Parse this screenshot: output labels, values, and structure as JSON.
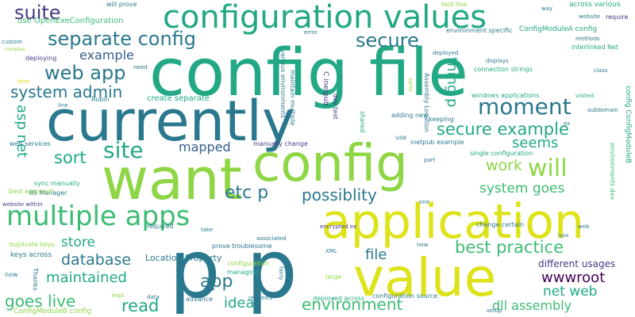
{
  "palette": {
    "yellow": "#dde318",
    "lime": "#8ed645",
    "green": "#3dbc74",
    "teal": "#22a884",
    "blue": "#2a788e",
    "slate": "#355f8d",
    "indigo": "#443a83",
    "purple": "#440154"
  },
  "words": [
    {
      "text": "config file"
    },
    {
      "text": "p p"
    },
    {
      "text": "currently"
    },
    {
      "text": "want"
    },
    {
      "text": "config"
    },
    {
      "text": "application"
    },
    {
      "text": "value"
    },
    {
      "text": "configuration values"
    },
    {
      "text": "multiple apps"
    },
    {
      "text": "separate config"
    },
    {
      "text": "secure"
    },
    {
      "text": "suite"
    },
    {
      "text": "web app"
    },
    {
      "text": "system admin"
    },
    {
      "text": "example"
    },
    {
      "text": "moment"
    },
    {
      "text": "site"
    },
    {
      "text": "will"
    },
    {
      "text": "secure example"
    },
    {
      "text": "sort"
    },
    {
      "text": "mapped"
    },
    {
      "text": "etc p"
    },
    {
      "text": "possiblity"
    },
    {
      "text": "seems"
    },
    {
      "text": "work"
    },
    {
      "text": "system goes"
    },
    {
      "text": "best practice"
    },
    {
      "text": "database"
    },
    {
      "text": "store"
    },
    {
      "text": "maintained"
    },
    {
      "text": "app"
    },
    {
      "text": "idea"
    },
    {
      "text": "read"
    },
    {
      "text": "goes live"
    },
    {
      "text": "environment"
    },
    {
      "text": "file"
    },
    {
      "text": "wwwroot"
    },
    {
      "text": "net web"
    },
    {
      "text": "dll assembly"
    },
    {
      "text": "asp net"
    },
    {
      "text": "thing p"
    },
    {
      "text": "different usages"
    },
    {
      "text": "Location Property"
    },
    {
      "text": "create separate"
    },
    {
      "text": "windows applications"
    },
    {
      "text": "use OpenExeConfiguration"
    },
    {
      "text": "ConfigModuleA config"
    },
    {
      "text": "environment specific"
    },
    {
      "text": "connection strings"
    },
    {
      "text": "inetpub example"
    },
    {
      "text": "single configuration"
    },
    {
      "text": "change certain"
    },
    {
      "text": "keys across"
    },
    {
      "text": "duplicate keys"
    },
    {
      "text": "ConfigModuleB config"
    },
    {
      "text": "configuration source"
    },
    {
      "text": "deployed across"
    },
    {
      "text": "encrypted ex"
    },
    {
      "text": "prove troublesome"
    },
    {
      "text": "manually change"
    },
    {
      "text": "IIS Manager"
    },
    {
      "text": "best approach"
    },
    {
      "text": "website within"
    },
    {
      "text": "web services"
    },
    {
      "text": "sync manually"
    },
    {
      "text": "adding new"
    },
    {
      "text": "various environments"
    },
    {
      "text": "maintain multiple"
    },
    {
      "text": "Assembly Location"
    },
    {
      "text": "C inetpub"
    },
    {
      "text": "dev test"
    },
    {
      "text": "across various"
    },
    {
      "text": "interlinked Net"
    },
    {
      "text": "subdomain"
    },
    {
      "text": "visited"
    },
    {
      "text": "environments dev"
    },
    {
      "text": "config ConfigModuleB"
    },
    {
      "text": "deploying"
    },
    {
      "text": "will prove"
    },
    {
      "text": "test live"
    },
    {
      "text": "Robin"
    },
    {
      "text": "line"
    },
    {
      "text": "required"
    },
    {
      "text": "associated"
    },
    {
      "text": "managing"
    },
    {
      "text": "configuration"
    },
    {
      "text": "advance"
    },
    {
      "text": "requests"
    },
    {
      "text": "kept"
    },
    {
      "text": "data"
    },
    {
      "text": "Thanks"
    },
    {
      "text": "now"
    },
    {
      "text": "setup"
    },
    {
      "text": "large"
    },
    {
      "text": "XML"
    },
    {
      "text": "keeping"
    },
    {
      "text": "use"
    },
    {
      "text": "part"
    },
    {
      "text": "one"
    },
    {
      "text": "need"
    },
    {
      "text": "way"
    },
    {
      "text": "error"
    },
    {
      "text": "deployed"
    },
    {
      "text": "website"
    },
    {
      "text": "require"
    },
    {
      "text": "methods"
    },
    {
      "text": "displays"
    },
    {
      "text": "class"
    },
    {
      "text": "custom"
    },
    {
      "text": "complex"
    },
    {
      "text": "sync"
    },
    {
      "text": "shared"
    },
    {
      "text": "web"
    },
    {
      "text": "type"
    },
    {
      "text": "take"
    },
    {
      "text": "fairly"
    },
    {
      "text": "ex"
    },
    {
      "text": "now"
    },
    {
      "text": "time"
    }
  ]
}
